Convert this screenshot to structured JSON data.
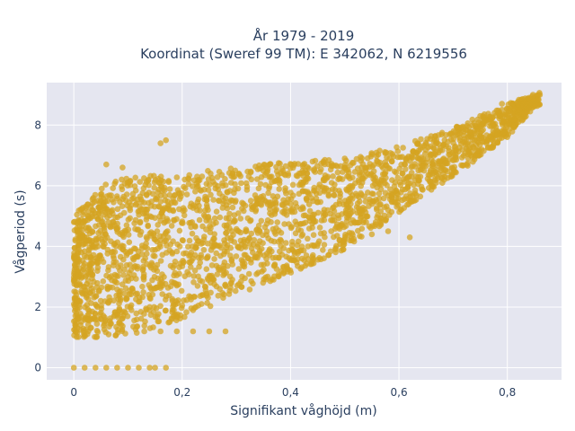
{
  "chart_data": {
    "type": "scatter",
    "title_lines": [
      "År 1979 - 2019",
      "Koordinat (Sweref 99 TM): E 342062, N 6219556"
    ],
    "xlabel": "Signifikant våghöjd (m)",
    "ylabel": "Vågperiod (s)",
    "xlim": [
      -0.05,
      0.9
    ],
    "ylim": [
      -0.4,
      9.4
    ],
    "x_ticks": [
      0,
      0.2,
      0.4,
      0.6,
      0.8
    ],
    "x_tick_labels": [
      "0",
      "0,2",
      "0,4",
      "0,6",
      "0,8"
    ],
    "y_ticks": [
      0,
      2,
      4,
      6,
      8
    ],
    "y_tick_labels": [
      "0",
      "2",
      "4",
      "6",
      "8"
    ],
    "grid": true,
    "marker_color": "#d4a421",
    "plot_background": "#e5e6f0",
    "point_cloud": {
      "description_of_envelope": "dense cloud of hourly wave observations",
      "lower_envelope": [
        [
          0.0,
          1.0
        ],
        [
          0.05,
          1.0
        ],
        [
          0.1,
          1.05
        ],
        [
          0.2,
          1.6
        ],
        [
          0.3,
          2.4
        ],
        [
          0.4,
          3.1
        ],
        [
          0.5,
          3.9
        ],
        [
          0.6,
          5.1
        ],
        [
          0.7,
          6.3
        ],
        [
          0.8,
          7.6
        ],
        [
          0.85,
          8.6
        ]
      ],
      "upper_envelope": [
        [
          0.0,
          5.0
        ],
        [
          0.05,
          6.0
        ],
        [
          0.1,
          6.3
        ],
        [
          0.2,
          6.4
        ],
        [
          0.3,
          6.6
        ],
        [
          0.4,
          6.8
        ],
        [
          0.5,
          6.9
        ],
        [
          0.6,
          7.3
        ],
        [
          0.7,
          7.9
        ],
        [
          0.8,
          8.7
        ],
        [
          0.86,
          9.1
        ]
      ]
    },
    "outliers": [
      {
        "x": 0.0,
        "y": 0.0
      },
      {
        "x": 0.02,
        "y": 0.0
      },
      {
        "x": 0.04,
        "y": 0.0
      },
      {
        "x": 0.06,
        "y": 0.0
      },
      {
        "x": 0.08,
        "y": 0.0
      },
      {
        "x": 0.1,
        "y": 0.0
      },
      {
        "x": 0.12,
        "y": 0.0
      },
      {
        "x": 0.14,
        "y": 0.0
      },
      {
        "x": 0.15,
        "y": 0.0
      },
      {
        "x": 0.17,
        "y": 0.0
      },
      {
        "x": 0.17,
        "y": 7.5
      },
      {
        "x": 0.16,
        "y": 7.4
      },
      {
        "x": 0.06,
        "y": 6.7
      },
      {
        "x": 0.09,
        "y": 6.6
      },
      {
        "x": 0.0,
        "y": 4.8
      },
      {
        "x": 0.13,
        "y": 1.2
      },
      {
        "x": 0.16,
        "y": 1.2
      },
      {
        "x": 0.19,
        "y": 1.2
      },
      {
        "x": 0.22,
        "y": 1.2
      },
      {
        "x": 0.25,
        "y": 1.2
      },
      {
        "x": 0.28,
        "y": 1.2
      },
      {
        "x": 0.62,
        "y": 4.3
      },
      {
        "x": 0.58,
        "y": 4.5
      },
      {
        "x": 0.55,
        "y": 4.4
      },
      {
        "x": 0.75,
        "y": 8.3
      },
      {
        "x": 0.79,
        "y": 8.7
      },
      {
        "x": 0.84,
        "y": 8.9
      },
      {
        "x": 0.86,
        "y": 9.0
      },
      {
        "x": 0.85,
        "y": 8.8
      }
    ]
  }
}
